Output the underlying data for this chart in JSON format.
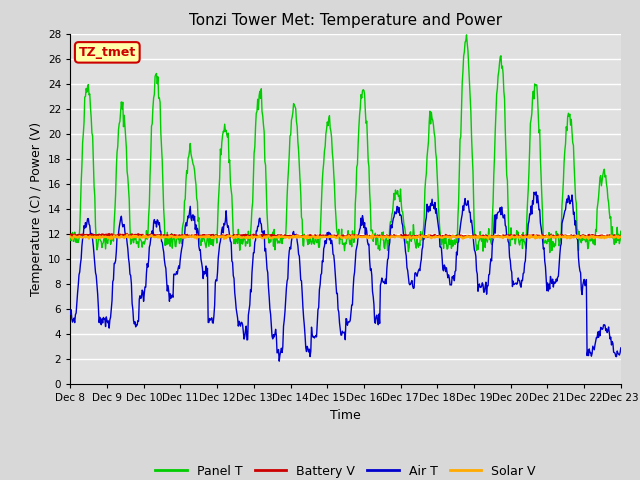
{
  "title": "Tonzi Tower Met: Temperature and Power",
  "xlabel": "Time",
  "ylabel": "Temperature (C) / Power (V)",
  "annotation": "TZ_tmet",
  "ylim": [
    0,
    28
  ],
  "yticks": [
    0,
    2,
    4,
    6,
    8,
    10,
    12,
    14,
    16,
    18,
    20,
    22,
    24,
    26,
    28
  ],
  "xtick_labels": [
    "Dec 8",
    "Dec 9",
    "Dec 10",
    "Dec 11",
    "Dec 12",
    "Dec 13",
    "Dec 14",
    "Dec 15",
    "Dec 16",
    "Dec 17",
    "Dec 18",
    "Dec 19",
    "Dec 20",
    "Dec 21",
    "Dec 22",
    "Dec 23"
  ],
  "background_color": "#d8d8d8",
  "plot_bg_color": "#e0e0e0",
  "grid_color": "#ffffff",
  "legend": [
    "Panel T",
    "Battery V",
    "Air T",
    "Solar V"
  ],
  "panel_t_color": "#00cc00",
  "battery_v_color": "#cc0000",
  "air_t_color": "#0000cc",
  "solar_v_color": "#ffaa00",
  "title_fontsize": 11,
  "axis_fontsize": 9,
  "tick_fontsize": 7.5,
  "annotation_fontsize": 9,
  "annotation_facecolor": "#ffffaa",
  "annotation_edgecolor": "#cc0000"
}
